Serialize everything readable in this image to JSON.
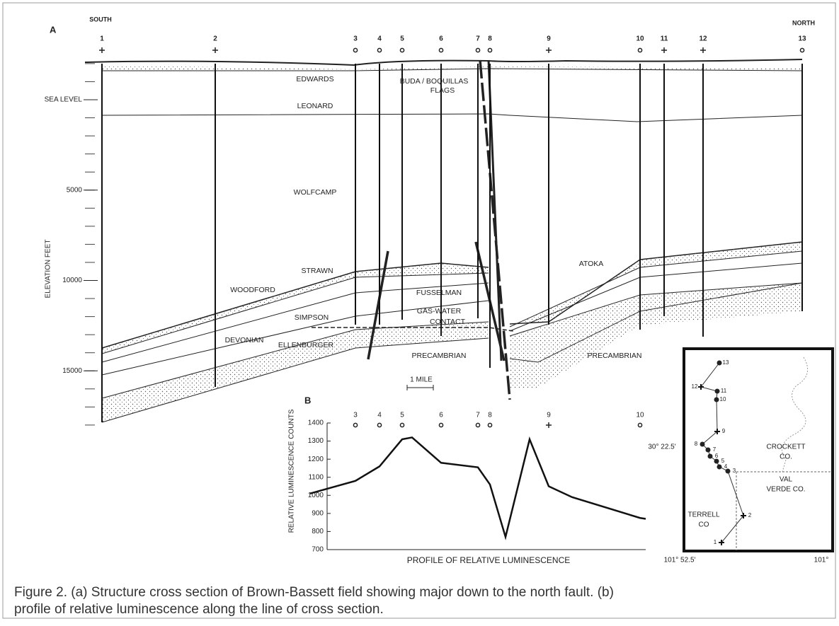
{
  "panel_a": {
    "label": "A",
    "south": "SOUTH",
    "north": "NORTH",
    "wells": [
      "1",
      "2",
      "3",
      "4",
      "5",
      "6",
      "7",
      "8",
      "9",
      "10",
      "11",
      "12",
      "13"
    ],
    "elevation_axis": {
      "label": "ELEVATION FEET",
      "ticks": [
        {
          "value": 0,
          "label": "SEA LEVEL"
        },
        5000,
        10000,
        15000
      ]
    },
    "formations": [
      "EDWARDS",
      "BUDA / BOQUILLAS",
      "FLAGS",
      "LEONARD",
      "WOLFCAMP",
      "STRAWN",
      "WOODFORD",
      "FUSSELMAN",
      "SIMPSON",
      "GAS-WATER",
      "CONTACT",
      "DEVONIAN",
      "ELLENBURGER",
      "PRECAMBRIAN",
      "PRECAMBRIAN",
      "ATOKA"
    ],
    "scale": "1 MILE"
  },
  "panel_b": {
    "label": "B",
    "y_label": "RELATIVE LUMINESCENCE COUNTS",
    "x_label": "PROFILE OF RELATIVE LUMINESCENCE",
    "ylim": [
      700,
      1400
    ],
    "yticks": [
      700,
      800,
      900,
      1000,
      1100,
      1200,
      1300,
      1400
    ],
    "profile": {
      "categories": [
        null,
        "3",
        "4",
        "5",
        null,
        "6",
        "7",
        "8",
        null,
        null,
        "9",
        null,
        "10",
        null
      ],
      "values": [
        1010,
        1080,
        1160,
        1310,
        1320,
        1180,
        1155,
        1060,
        770,
        1310,
        1050,
        990,
        875,
        870
      ]
    }
  },
  "map": {
    "wells": [
      "13",
      "12",
      "11",
      "10",
      "9",
      "8",
      "7",
      "6",
      "5",
      "4",
      "3",
      "2",
      "1"
    ],
    "latitude": "30° 22.5'",
    "lon_west": "101° 52.5'",
    "lon_east": "101°",
    "counties": [
      "CROCKETT",
      "CO.",
      "VAL",
      "VERDE CO.",
      "TERRELL",
      "CO"
    ]
  },
  "caption": [
    "Figure 2. (a) Structure cross section of Brown-Bassett field showing major down to the north fault. (b)",
    "profile of relative luminescence along the line of cross section."
  ]
}
